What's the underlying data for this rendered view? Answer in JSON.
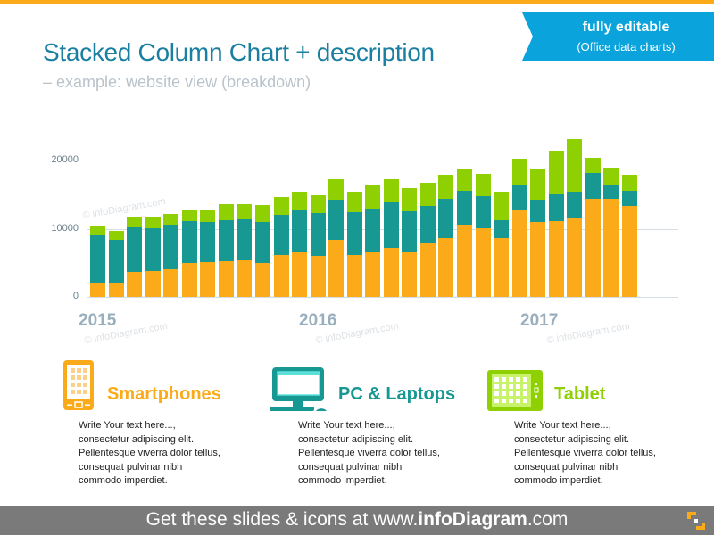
{
  "header": {
    "title": "Stacked Column Chart + description",
    "subtitle": "– example: website view (breakdown)",
    "ribbon_line1": "fully editable",
    "ribbon_line2": "(Office data charts)"
  },
  "colors": {
    "accent_orange": "#fbaa19",
    "teal": "#179893",
    "green": "#8fd002",
    "title_blue": "#1a7fa0",
    "ribbon_blue": "#0aa3dc",
    "footer_gray": "#7a7a7a"
  },
  "watermark": "© infoDiagram.com",
  "chart_data": {
    "type": "bar",
    "stacked": true,
    "title": "",
    "xlabel": "",
    "ylabel": "",
    "ylim": [
      0,
      22000
    ],
    "yticks": [
      0,
      10000,
      20000
    ],
    "ytick_labels": [
      "0",
      "10000",
      "20000"
    ],
    "grid": true,
    "year_labels": [
      "2015",
      "2016",
      "2017"
    ],
    "categories": [
      "1",
      "2",
      "3",
      "4",
      "5",
      "6",
      "7",
      "8",
      "9",
      "10",
      "11",
      "12",
      "13",
      "14",
      "15",
      "16",
      "17",
      "18",
      "19",
      "20",
      "21",
      "22",
      "23",
      "24",
      "25",
      "26",
      "27",
      "28",
      "29",
      "30"
    ],
    "series": [
      {
        "name": "Smartphones",
        "color": "#fbaa19",
        "values": [
          2100,
          2100,
          3700,
          3800,
          4100,
          5000,
          5100,
          5200,
          5400,
          5000,
          6100,
          6500,
          6000,
          8400,
          6100,
          6500,
          7200,
          6500,
          7800,
          8600,
          10600,
          10100,
          8600,
          12800,
          11000,
          11100,
          11600,
          14400,
          14400,
          13300
        ]
      },
      {
        "name": "PC & Laptops",
        "color": "#179893",
        "values": [
          6900,
          6300,
          6500,
          6300,
          6500,
          6100,
          5900,
          6100,
          6000,
          6000,
          5900,
          6300,
          6300,
          5900,
          6300,
          6500,
          6700,
          6000,
          5500,
          5800,
          5000,
          4700,
          2600,
          3700,
          3300,
          3900,
          3800,
          3800,
          2000,
          2200
        ]
      },
      {
        "name": "Tablet",
        "color": "#8fd002",
        "values": [
          1400,
          1300,
          1600,
          1700,
          1600,
          1700,
          1800,
          2300,
          2200,
          2500,
          2600,
          2600,
          2600,
          3000,
          3000,
          3500,
          3400,
          3500,
          3400,
          3500,
          3100,
          3300,
          4200,
          3800,
          4400,
          6400,
          7700,
          2200,
          2500,
          2400
        ]
      }
    ]
  },
  "categories_panel": [
    {
      "title": "Smartphones",
      "icon": "smartphone-icon",
      "color": "#fbaa19",
      "lines": [
        "Write Your text here...,",
        "consectetur adipiscing elit.",
        "Pellentesque viverra dolor tellus,",
        "consequat pulvinar nibh",
        "commodo  imperdiet."
      ]
    },
    {
      "title": "PC & Laptops",
      "icon": "desktop-computer-icon",
      "color": "#179893",
      "lines": [
        "Write Your text here...,",
        "consectetur adipiscing elit.",
        "Pellentesque viverra dolor tellus,",
        "consequat pulvinar nibh",
        "commodo  imperdiet."
      ]
    },
    {
      "title": "Tablet",
      "icon": "tablet-icon",
      "color": "#8fd002",
      "lines": [
        "Write Your text here...,",
        "consectetur adipiscing elit.",
        "Pellentesque viverra dolor tellus,",
        "consequat pulvinar nibh",
        "commodo  imperdiet."
      ]
    }
  ],
  "footer": {
    "prefix": "Get these slides & icons at www.",
    "brand": "infoDiagram",
    "suffix": ".com",
    "logo_icon": "infodiagram-logo-icon"
  }
}
